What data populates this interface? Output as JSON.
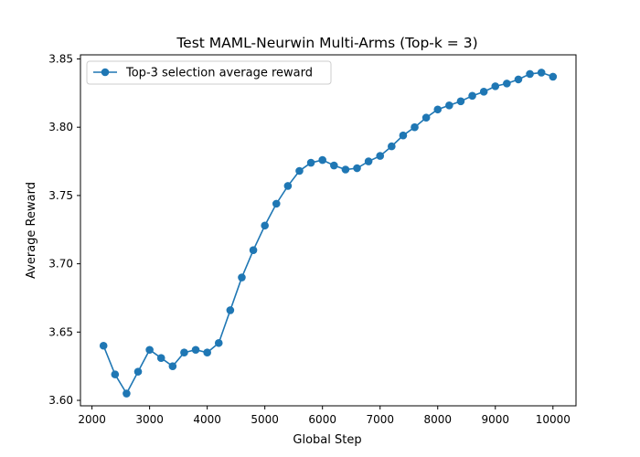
{
  "chart_data": {
    "type": "line",
    "title": "Test MAML-Neurwin Multi-Arms (Top-k = 3)",
    "xlabel": "Global Step",
    "ylabel": "Average Reward",
    "xlim": [
      1800,
      10400
    ],
    "ylim": [
      3.596,
      3.853
    ],
    "xticks": [
      2000,
      3000,
      4000,
      5000,
      6000,
      7000,
      8000,
      9000,
      10000
    ],
    "xtick_labels": [
      "2000",
      "3000",
      "4000",
      "5000",
      "6000",
      "7000",
      "8000",
      "9000",
      "10000"
    ],
    "yticks": [
      3.6,
      3.65,
      3.7,
      3.75,
      3.8,
      3.85
    ],
    "ytick_labels": [
      "3.60",
      "3.65",
      "3.70",
      "3.75",
      "3.80",
      "3.85"
    ],
    "grid": false,
    "legend_position": "top-left",
    "series": [
      {
        "name": "Top-3 selection average reward",
        "color": "#1f77b4",
        "marker": "circle",
        "x": [
          2200,
          2400,
          2600,
          2800,
          3000,
          3200,
          3400,
          3600,
          3800,
          4000,
          4200,
          4400,
          4600,
          4800,
          5000,
          5200,
          5400,
          5600,
          5800,
          6000,
          6200,
          6400,
          6600,
          6800,
          7000,
          7200,
          7400,
          7600,
          7800,
          8000,
          8200,
          8400,
          8600,
          8800,
          9000,
          9200,
          9400,
          9600,
          9800,
          10000
        ],
        "y": [
          3.64,
          3.619,
          3.605,
          3.621,
          3.637,
          3.631,
          3.625,
          3.635,
          3.637,
          3.635,
          3.642,
          3.666,
          3.69,
          3.71,
          3.728,
          3.744,
          3.757,
          3.768,
          3.774,
          3.776,
          3.772,
          3.769,
          3.77,
          3.775,
          3.779,
          3.786,
          3.794,
          3.8,
          3.807,
          3.813,
          3.816,
          3.819,
          3.823,
          3.826,
          3.83,
          3.832,
          3.835,
          3.839,
          3.84,
          3.837
        ]
      }
    ]
  }
}
